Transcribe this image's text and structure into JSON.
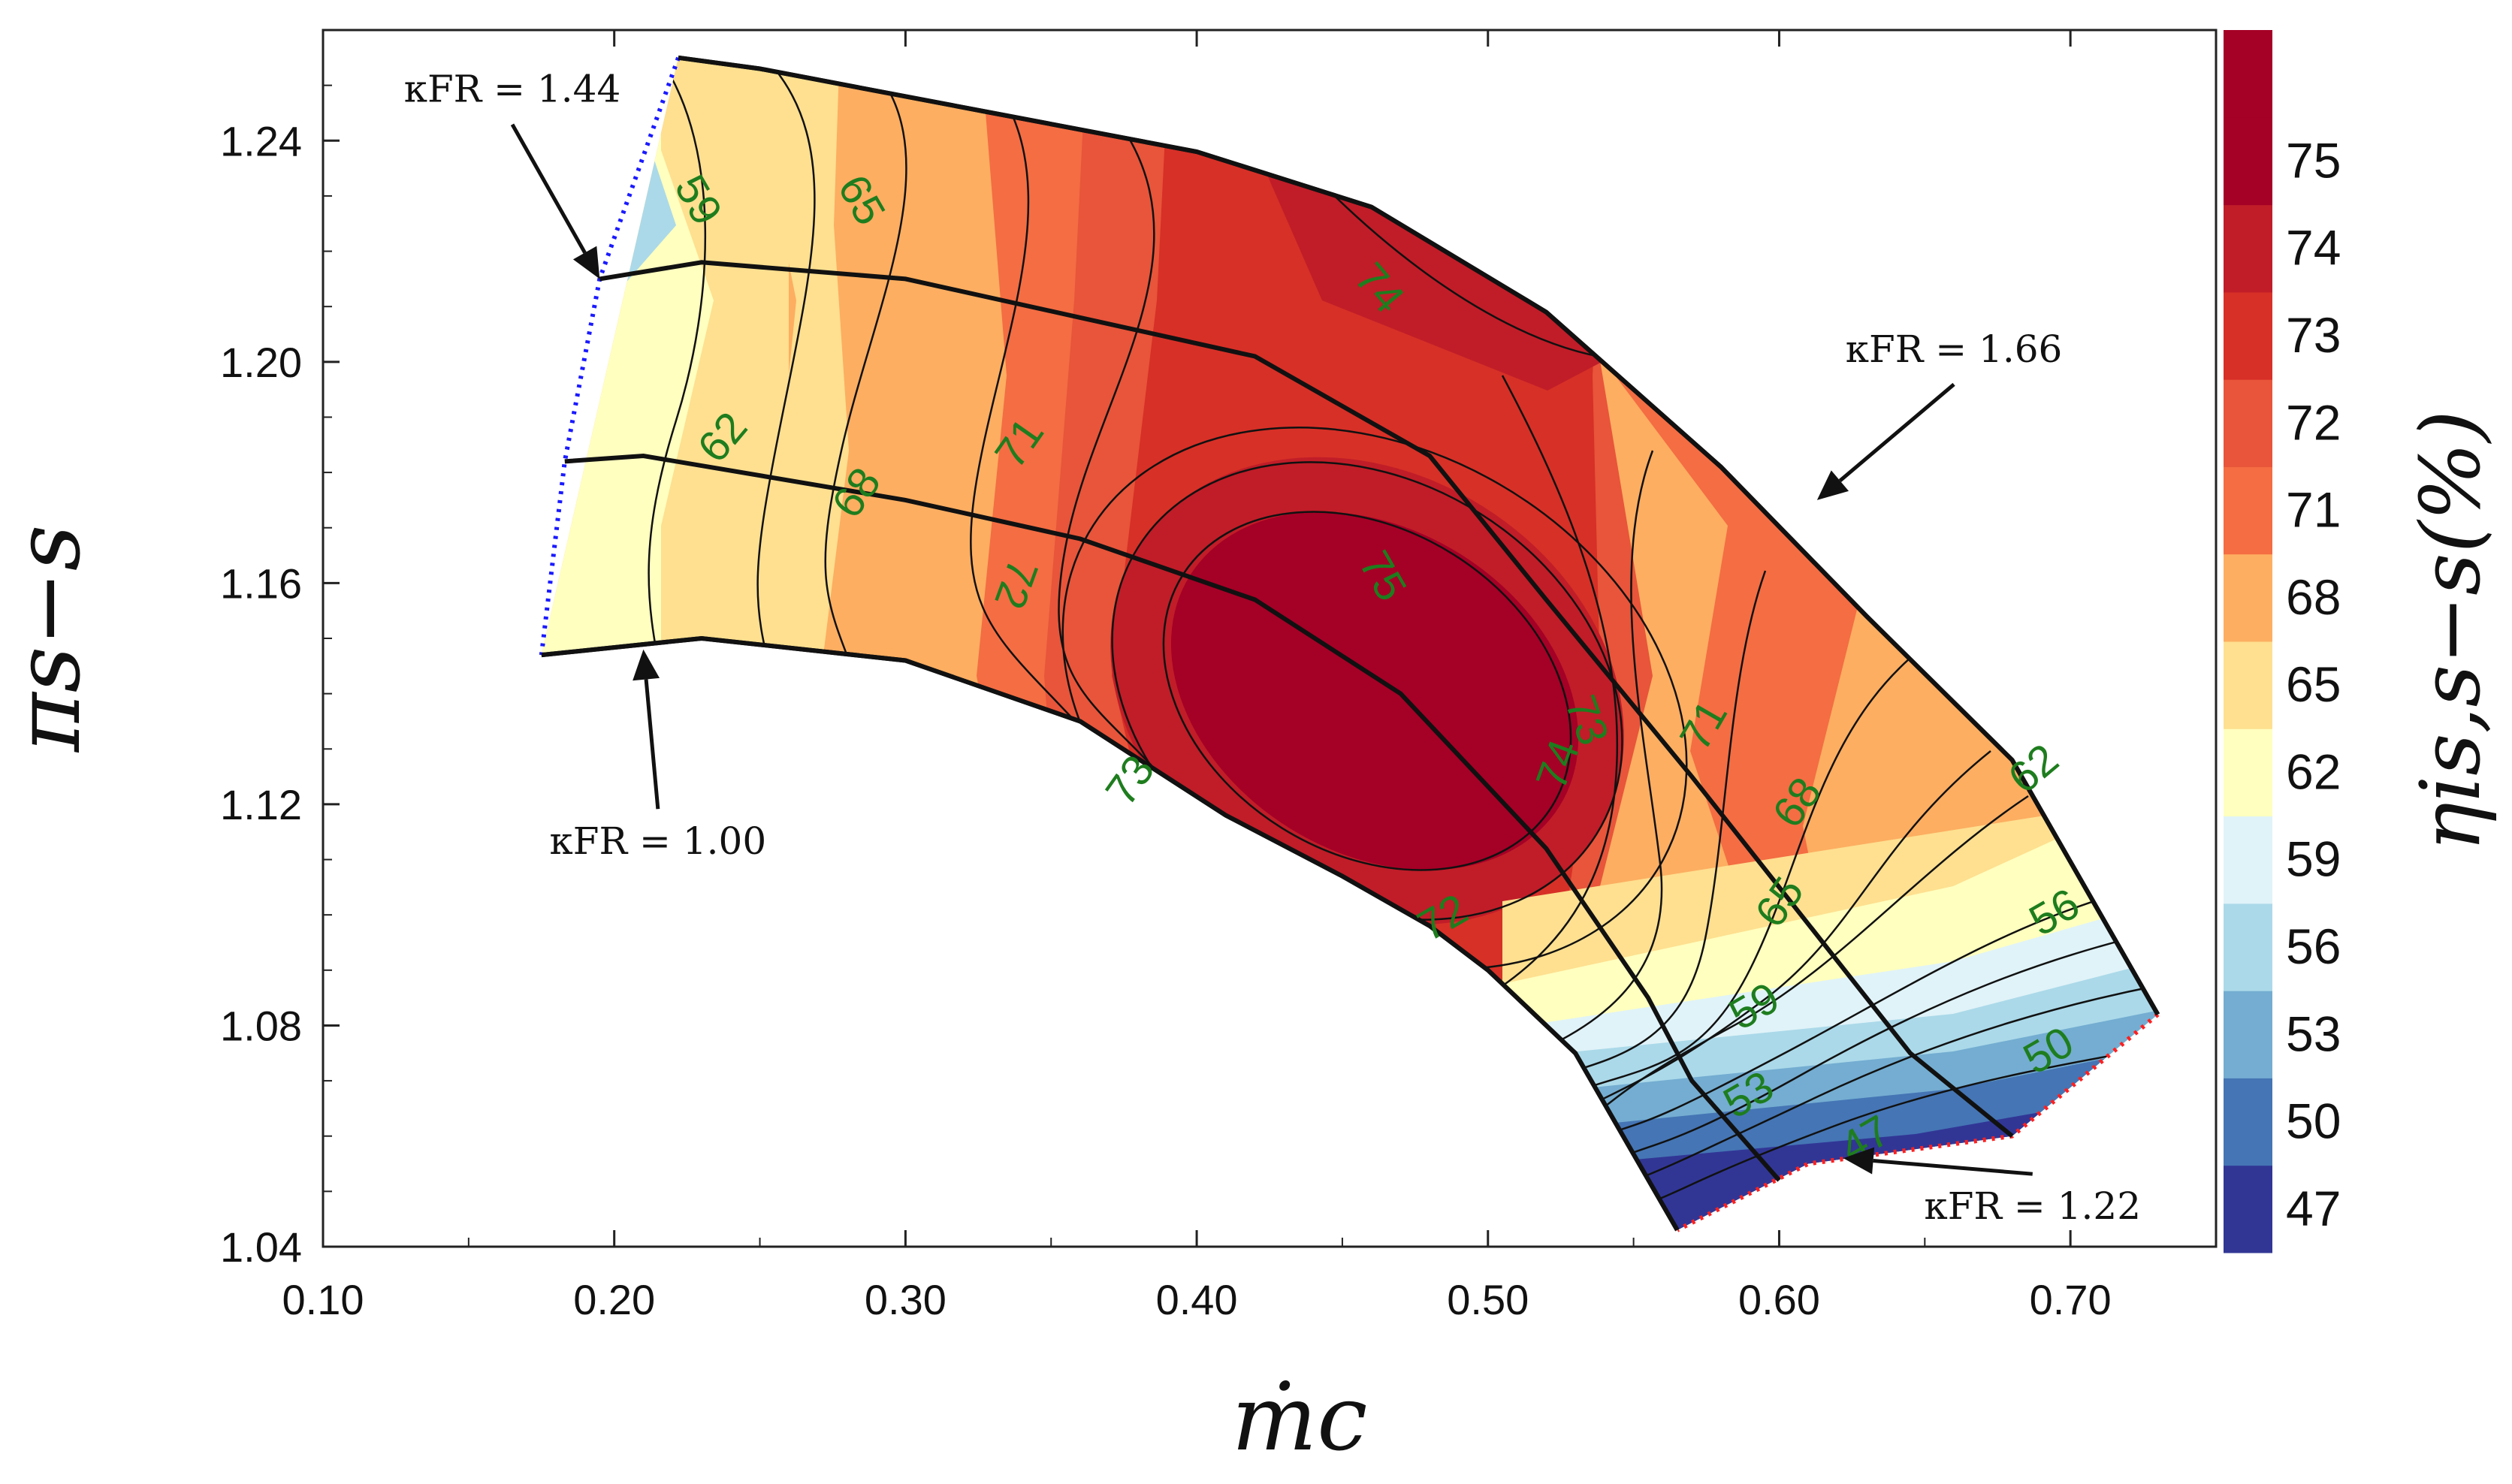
{
  "chart_data": {
    "type": "contour",
    "xlabel": "ṁc",
    "ylabel": "πs−s",
    "colorbar_label": "ηis,s−s(%)",
    "xlim": [
      0.1,
      0.75
    ],
    "ylim": [
      1.04,
      1.26
    ],
    "x_ticks": [
      "0.10",
      "0.20",
      "0.30",
      "0.40",
      "0.50",
      "0.60",
      "0.70"
    ],
    "y_ticks": [
      "1.04",
      "1.08",
      "1.12",
      "1.16",
      "1.20",
      "1.24"
    ],
    "colorbar": {
      "levels": [
        "47",
        "50",
        "53",
        "56",
        "59",
        "62",
        "65",
        "68",
        "71",
        "72",
        "73",
        "74",
        "75"
      ],
      "colors": [
        "#313695",
        "#4575b4",
        "#74add1",
        "#abd9e9",
        "#e0f3f8",
        "#ffffbf",
        "#fee090",
        "#fdae61",
        "#f46d43",
        "#e8553a",
        "#d73027",
        "#c01d28",
        "#a50026"
      ]
    },
    "peak_region": {
      "x": 0.46,
      "y": 1.14,
      "value": 75
    },
    "speed_lines": [
      {
        "name": "κFR = 1.00",
        "points": [
          [
            0.175,
            1.147
          ],
          [
            0.23,
            1.15
          ],
          [
            0.3,
            1.146
          ],
          [
            0.36,
            1.135
          ],
          [
            0.41,
            1.118
          ],
          [
            0.45,
            1.107
          ],
          [
            0.48,
            1.098
          ],
          [
            0.5,
            1.09
          ],
          [
            0.53,
            1.075
          ],
          [
            0.565,
            1.043
          ]
        ]
      },
      {
        "name": "κFR = 1.22",
        "points": [
          [
            0.183,
            1.182
          ],
          [
            0.21,
            1.183
          ],
          [
            0.3,
            1.175
          ],
          [
            0.36,
            1.168
          ],
          [
            0.42,
            1.157
          ],
          [
            0.47,
            1.14
          ],
          [
            0.52,
            1.112
          ],
          [
            0.555,
            1.085
          ],
          [
            0.57,
            1.07
          ],
          [
            0.6,
            1.052
          ]
        ]
      },
      {
        "name": "κFR = 1.44",
        "points": [
          [
            0.195,
            1.215
          ],
          [
            0.23,
            1.218
          ],
          [
            0.3,
            1.215
          ],
          [
            0.36,
            1.208
          ],
          [
            0.42,
            1.201
          ],
          [
            0.48,
            1.183
          ],
          [
            0.52,
            1.157
          ],
          [
            0.57,
            1.125
          ],
          [
            0.615,
            1.095
          ],
          [
            0.645,
            1.075
          ],
          [
            0.68,
            1.06
          ]
        ]
      },
      {
        "name": "κFR = 1.66",
        "points": [
          [
            0.222,
            1.255
          ],
          [
            0.25,
            1.253
          ],
          [
            0.33,
            1.245
          ],
          [
            0.4,
            1.238
          ],
          [
            0.46,
            1.228
          ],
          [
            0.52,
            1.209
          ],
          [
            0.58,
            1.181
          ],
          [
            0.63,
            1.154
          ],
          [
            0.68,
            1.128
          ],
          [
            0.73,
            1.082
          ]
        ]
      }
    ],
    "contour_labels": [
      {
        "text": "59",
        "x": 0.228,
        "y": 1.229,
        "rot": 60
      },
      {
        "text": "65",
        "x": 0.284,
        "y": 1.229,
        "rot": 60
      },
      {
        "text": "74",
        "x": 0.462,
        "y": 1.213,
        "rot": 50
      },
      {
        "text": "62",
        "x": 0.238,
        "y": 1.186,
        "rot": -50
      },
      {
        "text": "71",
        "x": 0.34,
        "y": 1.185,
        "rot": -55
      },
      {
        "text": "68",
        "x": 0.284,
        "y": 1.176,
        "rot": -55
      },
      {
        "text": "72",
        "x": 0.337,
        "y": 1.16,
        "rot": 110
      },
      {
        "text": "75",
        "x": 0.463,
        "y": 1.161,
        "rot": 60
      },
      {
        "text": "73",
        "x": 0.533,
        "y": 1.135,
        "rot": 70
      },
      {
        "text": "74",
        "x": 0.525,
        "y": 1.127,
        "rot": -70
      },
      {
        "text": "71",
        "x": 0.575,
        "y": 1.134,
        "rot": -60
      },
      {
        "text": "73",
        "x": 0.378,
        "y": 1.124,
        "rot": -55
      },
      {
        "text": "68",
        "x": 0.607,
        "y": 1.12,
        "rot": -55
      },
      {
        "text": "62",
        "x": 0.688,
        "y": 1.126,
        "rot": -40
      },
      {
        "text": "65",
        "x": 0.601,
        "y": 1.102,
        "rot": -55
      },
      {
        "text": "72",
        "x": 0.485,
        "y": 1.099,
        "rot": -30
      },
      {
        "text": "56",
        "x": 0.695,
        "y": 1.1,
        "rot": -30
      },
      {
        "text": "59",
        "x": 0.592,
        "y": 1.083,
        "rot": -30
      },
      {
        "text": "50",
        "x": 0.693,
        "y": 1.075,
        "rot": -30
      },
      {
        "text": "53",
        "x": 0.59,
        "y": 1.067,
        "rot": -30
      },
      {
        "text": "47",
        "x": 0.63,
        "y": 1.059,
        "rot": -30
      }
    ],
    "annotations": [
      {
        "text": "κFR = 1.44",
        "x": 0.165,
        "y": 1.247,
        "arrow_to": [
          0.195,
          1.215
        ]
      },
      {
        "text": "κFR = 1.66",
        "x": 0.66,
        "y": 1.2,
        "arrow_to": [
          0.613,
          1.175
        ]
      },
      {
        "text": "κFR = 1.00",
        "x": 0.215,
        "y": 1.111,
        "arrow_to": [
          0.21,
          1.148
        ]
      },
      {
        "text": "κFR = 1.22",
        "x": 0.687,
        "y": 1.045,
        "arrow_to": [
          0.622,
          1.056
        ]
      }
    ]
  }
}
